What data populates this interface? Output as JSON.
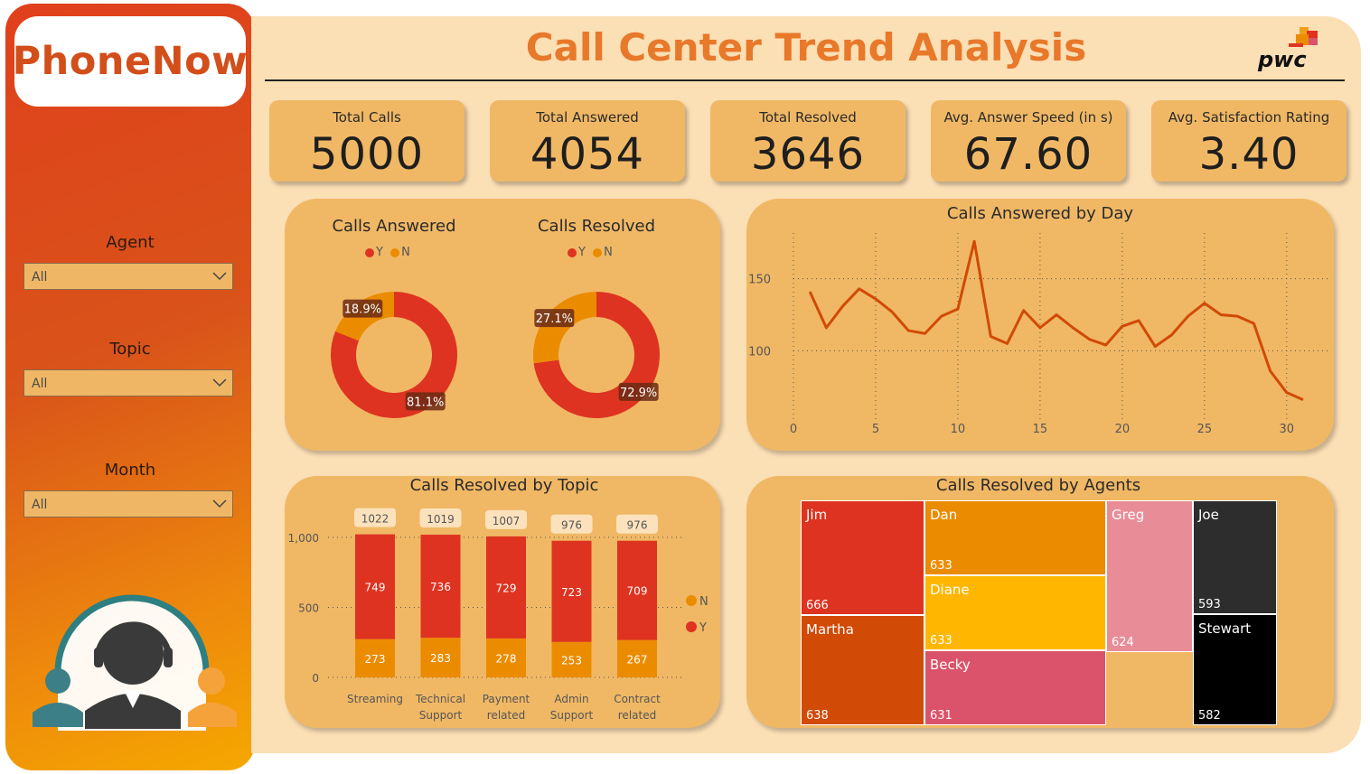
{
  "brand": "PhoneNow",
  "title": "Call Center Trend Analysis",
  "logo_text": "pwc",
  "filters": [
    {
      "label": "Agent",
      "value": "All"
    },
    {
      "label": "Topic",
      "value": "All"
    },
    {
      "label": "Month",
      "value": "All"
    }
  ],
  "kpis": [
    {
      "label": "Total Calls",
      "value": "5000"
    },
    {
      "label": "Total Answered",
      "value": "4054"
    },
    {
      "label": "Total Resolved",
      "value": "3646"
    },
    {
      "label": "Avg. Answer Speed (in s)",
      "value": "67.60"
    },
    {
      "label": "Avg. Satisfaction Rating",
      "value": "3.40"
    }
  ],
  "colors": {
    "Y": "#de3320",
    "N": "#eb8c00",
    "accent": "#e8782a"
  },
  "chart_data": [
    {
      "type": "pie",
      "title": "Calls Answered",
      "legend": [
        "Y",
        "N"
      ],
      "slices": [
        {
          "name": "Y",
          "value": 81.1,
          "label": "81.1%"
        },
        {
          "name": "N",
          "value": 18.9,
          "label": "18.9%"
        }
      ]
    },
    {
      "type": "pie",
      "title": "Calls Resolved",
      "legend": [
        "Y",
        "N"
      ],
      "slices": [
        {
          "name": "Y",
          "value": 72.9,
          "label": "72.9%"
        },
        {
          "name": "N",
          "value": 27.1,
          "label": "27.1%"
        }
      ]
    },
    {
      "type": "line",
      "title": "Calls Answered by Day",
      "x": [
        1,
        2,
        3,
        4,
        5,
        6,
        7,
        8,
        9,
        10,
        11,
        12,
        13,
        14,
        15,
        16,
        17,
        18,
        19,
        20,
        21,
        22,
        23,
        24,
        25,
        26,
        27,
        28,
        29,
        30,
        31
      ],
      "values": [
        141,
        116,
        131,
        143,
        136,
        127,
        114,
        112,
        124,
        129,
        176,
        110,
        105,
        128,
        116,
        125,
        116,
        108,
        104,
        117,
        121,
        103,
        111,
        124,
        133,
        125,
        124,
        119,
        86,
        71,
        66
      ],
      "xticks": [
        "0",
        "5",
        "10",
        "15",
        "20",
        "25",
        "30"
      ],
      "yticks": [
        "100",
        "150"
      ],
      "xlim": [
        0,
        31
      ],
      "ylim": [
        52,
        188
      ],
      "grid": true
    },
    {
      "type": "bar",
      "title": "Calls Resolved by Topic",
      "categories": [
        "Streaming",
        "Technical Support",
        "Payment related",
        "Admin Support",
        "Contract related"
      ],
      "series": [
        {
          "name": "Y",
          "values": [
            749,
            736,
            729,
            723,
            709
          ]
        },
        {
          "name": "N",
          "values": [
            273,
            283,
            278,
            253,
            267
          ]
        }
      ],
      "totals": [
        1022,
        1019,
        1007,
        976,
        976
      ],
      "yticks": [
        "0",
        "500",
        "1,000"
      ],
      "ylim": [
        0,
        1000
      ],
      "legend": [
        "N",
        "Y"
      ],
      "legend_position": "right"
    },
    {
      "type": "treemap",
      "title": "Calls Resolved by Agents",
      "items": [
        {
          "name": "Jim",
          "value": 666,
          "color": "#de3320"
        },
        {
          "name": "Martha",
          "value": 638,
          "color": "#d14a06"
        },
        {
          "name": "Dan",
          "value": 633,
          "color": "#eb8c00"
        },
        {
          "name": "Diane",
          "value": 633,
          "color": "#ffb600"
        },
        {
          "name": "Becky",
          "value": 631,
          "color": "#db536a"
        },
        {
          "name": "Greg",
          "value": 624,
          "color": "#e88d97"
        },
        {
          "name": "Joe",
          "value": 593,
          "color": "#2d2d2d"
        },
        {
          "name": "Stewart",
          "value": 582,
          "color": "#000000"
        }
      ]
    }
  ]
}
